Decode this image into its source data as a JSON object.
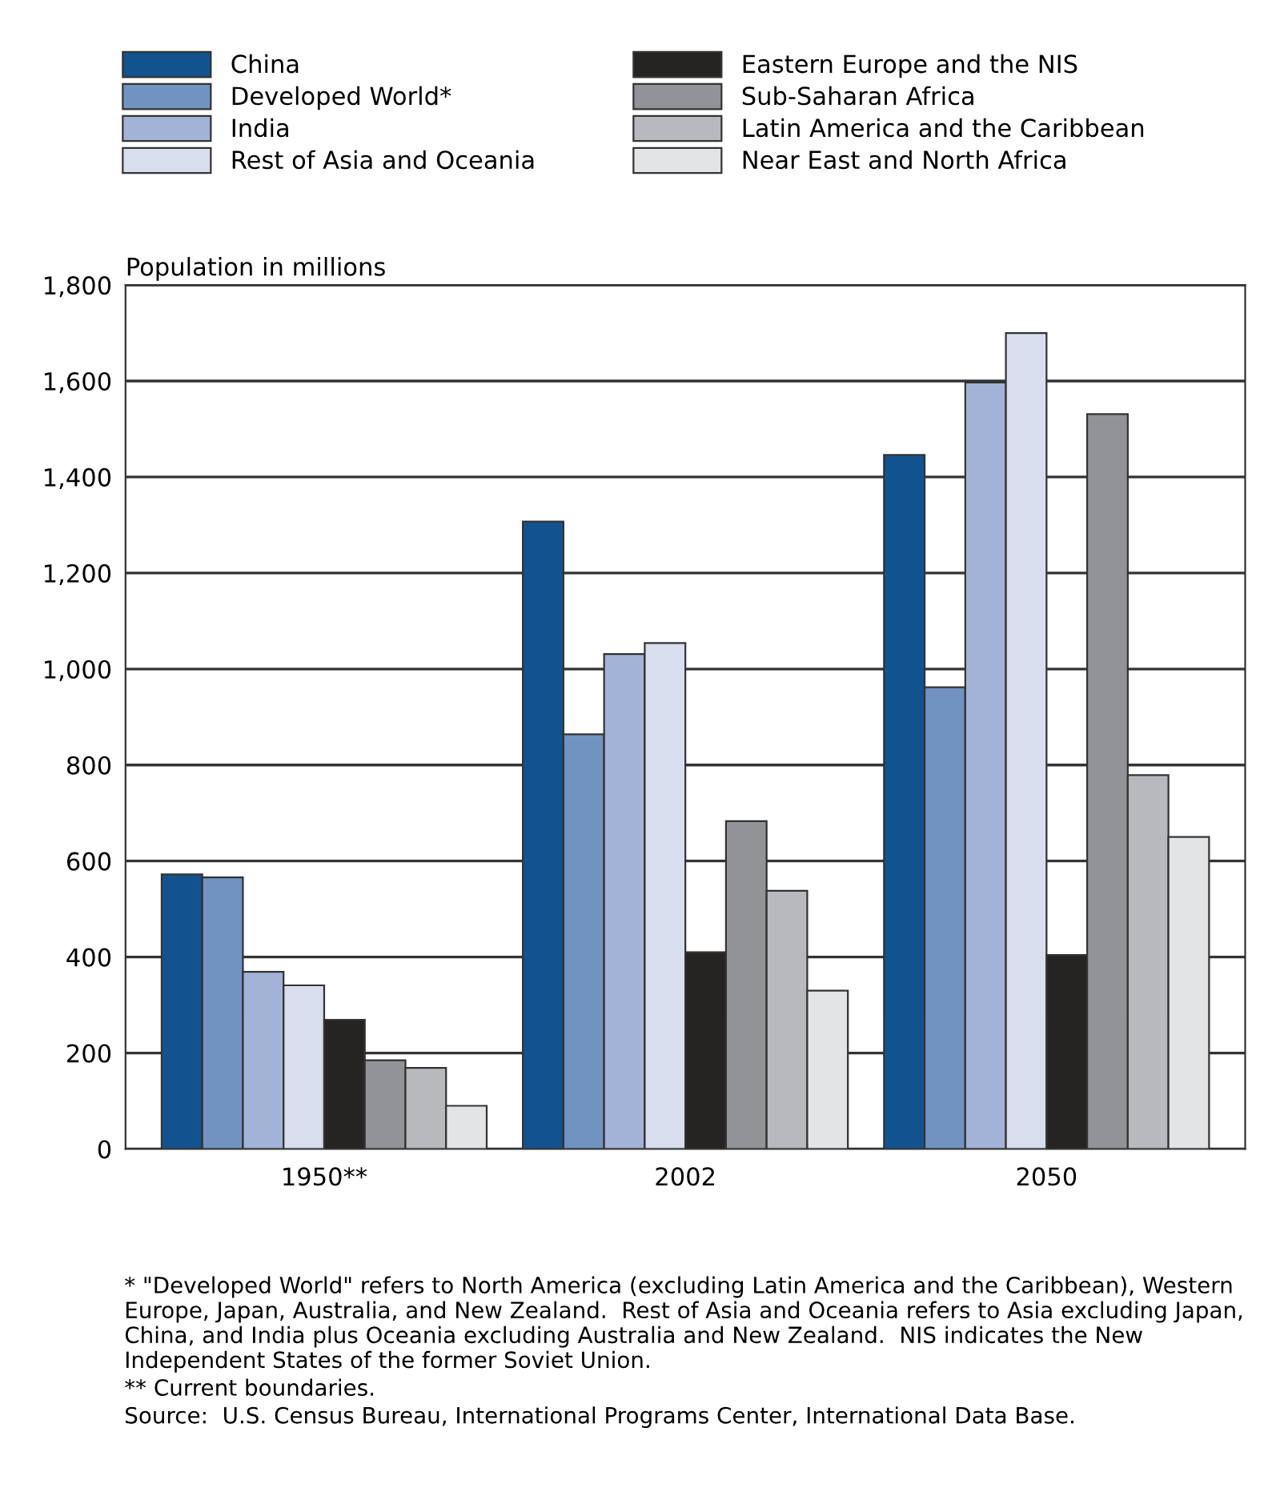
{
  "chart_data": {
    "type": "bar",
    "ylabel": "Population in millions",
    "categories": [
      "1950**",
      "2002",
      "2050"
    ],
    "series": [
      {
        "name": "China",
        "color": "#12538f",
        "values": [
          572,
          1307,
          1446
        ]
      },
      {
        "name": "Developed World*",
        "color": "#7193c2",
        "values": [
          566,
          864,
          962
        ]
      },
      {
        "name": "India",
        "color": "#a2b3d7",
        "values": [
          369,
          1031,
          1597
        ]
      },
      {
        "name": "Rest of Asia and Oceania",
        "color": "#d8deed",
        "values": [
          341,
          1054,
          1700
        ]
      },
      {
        "name": "Eastern Europe and the NIS",
        "color": "#252422",
        "values": [
          269,
          410,
          404
        ]
      },
      {
        "name": "Sub-Saharan Africa",
        "color": "#929396",
        "values": [
          185,
          683,
          1531
        ]
      },
      {
        "name": "Latin America and the Caribbean",
        "color": "#b8b9bc",
        "values": [
          169,
          538,
          779
        ]
      },
      {
        "name": "Near East and North Africa",
        "color": "#e3e4e6",
        "values": [
          90,
          330,
          650
        ]
      }
    ],
    "ylim": [
      0,
      1800
    ],
    "yticks": [
      {
        "value": 0,
        "label": "0"
      },
      {
        "value": 200,
        "label": "200"
      },
      {
        "value": 400,
        "label": "400"
      },
      {
        "value": 600,
        "label": "600"
      },
      {
        "value": 800,
        "label": "800"
      },
      {
        "value": 1000,
        "label": "1,000"
      },
      {
        "value": 1200,
        "label": "1,200"
      },
      {
        "value": 1400,
        "label": "1,400"
      },
      {
        "value": 1600,
        "label": "1,600"
      },
      {
        "value": 1800,
        "label": "1,800"
      }
    ],
    "grid": "y",
    "legend": "top",
    "annotations": [
      "* \"Developed World\" refers to North America (excluding Latin America and the Caribbean), Western Europe, Japan, Australia, and New Zealand.  Rest of Asia and Oceania refers to Asia excluding Japan, China, and India plus Oceania excluding Australia and New Zealand.  NIS indicates the New Independent States of the former Soviet Union.",
      "** Current boundaries.",
      "Source:  U.S. Census Bureau, International Programs Center, International Data Base."
    ]
  }
}
